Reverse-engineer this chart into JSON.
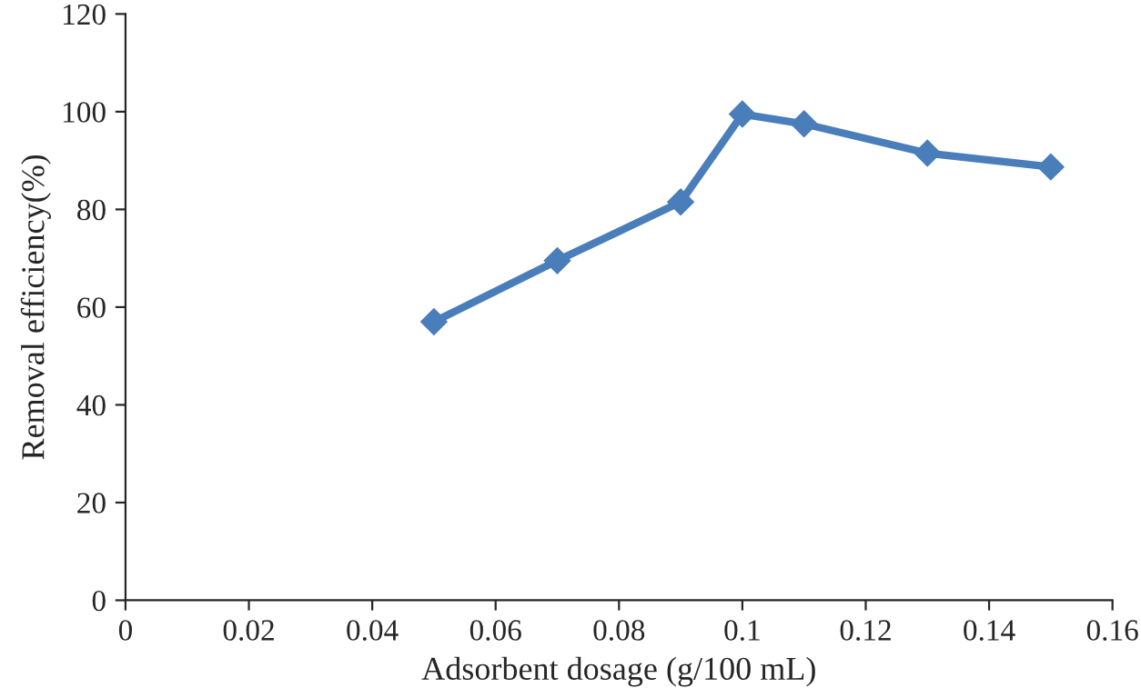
{
  "chart_data": {
    "type": "line",
    "xlabel": "Adsorbent dosage (g/100 mL)",
    "ylabel": "Removal efficiency(%)",
    "x": [
      0.05,
      0.07,
      0.09,
      0.1,
      0.11,
      0.13,
      0.15
    ],
    "series": [
      {
        "color": "#4a7ebb",
        "values": [
          57,
          69.5,
          81.5,
          99.5,
          97.5,
          91.5,
          88.7
        ]
      }
    ],
    "xlim": [
      0,
      0.16
    ],
    "xticks": [
      {
        "value": 0,
        "label": "0"
      },
      0.02,
      0.04,
      0.06,
      0.08,
      {
        "value": 0.1,
        "label": "0.1"
      },
      0.12,
      0.14,
      0.16
    ],
    "ylim": [
      0,
      120
    ],
    "yticks": [
      0,
      20,
      40,
      60,
      80,
      100,
      120
    ],
    "marker": "diamond",
    "line_style": "solid"
  }
}
